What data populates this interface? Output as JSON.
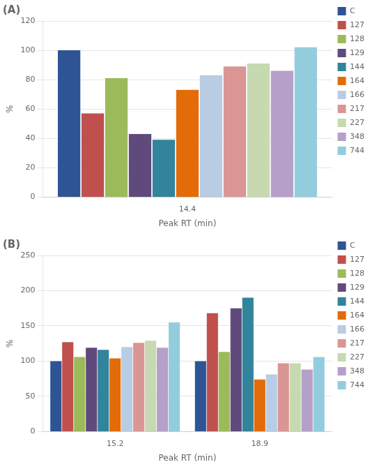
{
  "chart_data": [
    {
      "type": "bar",
      "title": "(A)",
      "x_label": "Peak RT (min)",
      "y_label": "%",
      "categories": [
        "14.4"
      ],
      "series": [
        {
          "name": "C",
          "color": "#2F5496",
          "values": [
            100
          ]
        },
        {
          "name": "127",
          "color": "#C0504D",
          "values": [
            57
          ]
        },
        {
          "name": "128",
          "color": "#9BBB59",
          "values": [
            81
          ]
        },
        {
          "name": "129",
          "color": "#604A7B",
          "values": [
            43
          ]
        },
        {
          "name": "144",
          "color": "#31849B",
          "values": [
            39
          ]
        },
        {
          "name": "164",
          "color": "#E36C09",
          "values": [
            73
          ]
        },
        {
          "name": "166",
          "color": "#B8CCE4",
          "values": [
            83
          ]
        },
        {
          "name": "217",
          "color": "#DA9694",
          "values": [
            89
          ]
        },
        {
          "name": "227",
          "color": "#C6D9B0",
          "values": [
            91
          ]
        },
        {
          "name": "348",
          "color": "#B4A0C8",
          "values": [
            86
          ]
        },
        {
          "name": "744",
          "color": "#93CDDD",
          "values": [
            102
          ]
        }
      ],
      "ylim": [
        0,
        120
      ],
      "yticks": [
        0,
        20,
        40,
        60,
        80,
        100,
        120
      ],
      "grid": true,
      "legend": "right"
    },
    {
      "type": "bar",
      "title": "(B)",
      "x_label": "Peak RT (min)",
      "y_label": "%",
      "categories": [
        "15.2",
        "18.9"
      ],
      "series": [
        {
          "name": "C",
          "color": "#2F5496",
          "values": [
            100,
            100
          ]
        },
        {
          "name": "127",
          "color": "#C0504D",
          "values": [
            127,
            168
          ]
        },
        {
          "name": "128",
          "color": "#9BBB59",
          "values": [
            106,
            113
          ]
        },
        {
          "name": "129",
          "color": "#604A7B",
          "values": [
            119,
            175
          ]
        },
        {
          "name": "144",
          "color": "#31849B",
          "values": [
            116,
            190
          ]
        },
        {
          "name": "164",
          "color": "#E36C09",
          "values": [
            104,
            74
          ]
        },
        {
          "name": "166",
          "color": "#B8CCE4",
          "values": [
            120,
            81
          ]
        },
        {
          "name": "217",
          "color": "#DA9694",
          "values": [
            126,
            97
          ]
        },
        {
          "name": "227",
          "color": "#C6D9B0",
          "values": [
            129,
            97
          ]
        },
        {
          "name": "348",
          "color": "#B4A0C8",
          "values": [
            119,
            88
          ]
        },
        {
          "name": "744",
          "color": "#93CDDD",
          "values": [
            155,
            106
          ]
        }
      ],
      "ylim": [
        0,
        250
      ],
      "yticks": [
        0,
        50,
        100,
        150,
        200,
        250
      ],
      "grid": true,
      "legend": "right"
    }
  ]
}
